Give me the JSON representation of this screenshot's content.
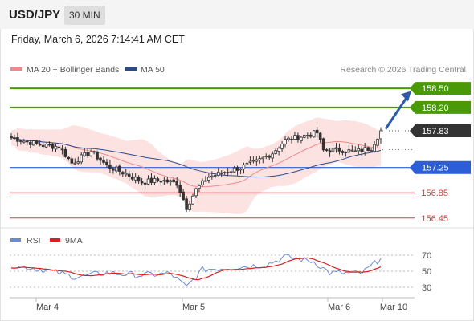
{
  "header": {
    "symbol": "USD/JPY",
    "timeframe": "30 MIN",
    "datetime": "Friday, March 6, 2026 7:14:41 AM CET"
  },
  "legend": {
    "ma20_label": "MA 20 + Bollinger Bands",
    "ma50_label": "MA 50",
    "credit": "Research © 2026 Trading Central",
    "rsi_label": "RSI",
    "rsi_ma_label": "9MA"
  },
  "colors": {
    "resistance": "#4a9a07",
    "current": "#333333",
    "pivot": "#2c5fd6",
    "support": "#d63b3b",
    "bollinger_fill": "#fde2e2",
    "ma20": "#f08a8a",
    "ma50": "#2a4a8a",
    "candle": "#333333",
    "rsi": "#6a8ad6",
    "rsi_ma": "#d82020",
    "arrow": "#2a5aa8"
  },
  "chart_data": [
    {
      "type": "candlestick",
      "ylim": [
        156.32,
        158.68
      ],
      "xtick_labels": [
        "Mar 4",
        "Mar 5",
        "Mar 6",
        "Mar 10"
      ],
      "price_levels": [
        {
          "kind": "resistance",
          "value": 158.5,
          "label": "158.50"
        },
        {
          "kind": "resistance",
          "value": 158.2,
          "label": "158.20"
        },
        {
          "kind": "current",
          "value": 157.83,
          "label": "157.83"
        },
        {
          "kind": "pivot",
          "value": 157.25,
          "label": "157.25"
        },
        {
          "kind": "support",
          "value": 156.85,
          "label": "156.85"
        },
        {
          "kind": "support",
          "value": 156.45,
          "label": "156.45"
        }
      ],
      "close_anchors": [
        {
          "bar": 0,
          "close": 157.72
        },
        {
          "bar": 5,
          "close": 157.66
        },
        {
          "bar": 10,
          "close": 157.6
        },
        {
          "bar": 15,
          "close": 157.58
        },
        {
          "bar": 19,
          "close": 157.32
        },
        {
          "bar": 25,
          "close": 157.5
        },
        {
          "bar": 30,
          "close": 157.28
        },
        {
          "bar": 36,
          "close": 157.15
        },
        {
          "bar": 41,
          "close": 157.02
        },
        {
          "bar": 47,
          "close": 157.05
        },
        {
          "bar": 52,
          "close": 157.0
        },
        {
          "bar": 55,
          "close": 156.62
        },
        {
          "bar": 58,
          "close": 156.9
        },
        {
          "bar": 62,
          "close": 157.1
        },
        {
          "bar": 67,
          "close": 157.18
        },
        {
          "bar": 72,
          "close": 157.25
        },
        {
          "bar": 77,
          "close": 157.34
        },
        {
          "bar": 82,
          "close": 157.48
        },
        {
          "bar": 86,
          "close": 157.68
        },
        {
          "bar": 91,
          "close": 157.74
        },
        {
          "bar": 96,
          "close": 157.8
        },
        {
          "bar": 98,
          "close": 157.52
        },
        {
          "bar": 103,
          "close": 157.53
        },
        {
          "bar": 108,
          "close": 157.5
        },
        {
          "bar": 113,
          "close": 157.56
        },
        {
          "bar": 116,
          "close": 157.83
        }
      ],
      "rsi": {
        "ylim": [
          20,
          80
        ],
        "levels": [
          70,
          50,
          30
        ],
        "anchors": [
          {
            "bar": 0,
            "rsi": 58
          },
          {
            "bar": 10,
            "rsi": 52
          },
          {
            "bar": 20,
            "rsi": 43
          },
          {
            "bar": 30,
            "rsi": 48
          },
          {
            "bar": 40,
            "rsi": 45
          },
          {
            "bar": 50,
            "rsi": 47
          },
          {
            "bar": 55,
            "rsi": 30
          },
          {
            "bar": 60,
            "rsi": 52
          },
          {
            "bar": 70,
            "rsi": 55
          },
          {
            "bar": 80,
            "rsi": 58
          },
          {
            "bar": 86,
            "rsi": 68
          },
          {
            "bar": 95,
            "rsi": 62
          },
          {
            "bar": 100,
            "rsi": 48
          },
          {
            "bar": 110,
            "rsi": 47
          },
          {
            "bar": 116,
            "rsi": 66
          }
        ]
      }
    }
  ]
}
